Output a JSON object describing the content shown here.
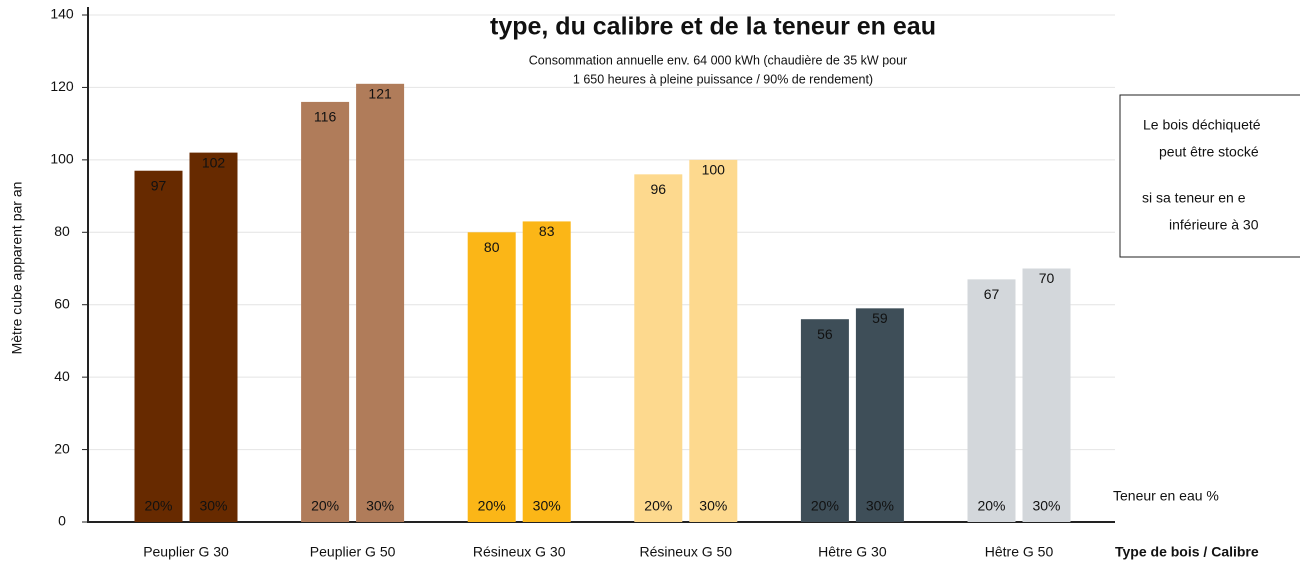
{
  "chart_data": {
    "type": "bar",
    "title": "type, du calibre et de la teneur en eau",
    "subtitle": [
      "Consommation annuelle env. 64 000 kWh (chaudière de 35 kW pour",
      "1 650 heures à pleine puissance / 90% de rendement)"
    ],
    "y_label": "Mètre cube apparent par an",
    "x_label": "Type de bois / Calibre",
    "series_label": "Teneur en eau %",
    "annotation": [
      "Le bois déchiqueté",
      "peut être stocké",
      "si sa teneur en e",
      "inférieure à 30"
    ],
    "categories": [
      "Peuplier G 30",
      "Peuplier G 50",
      "Résineux G 30",
      "Résineux G 50",
      "Hêtre G 30",
      "Hêtre G 50"
    ],
    "colors": [
      "#672a00",
      "#b07c5a",
      "#fbb617",
      "#fdd98e",
      "#3e4e58",
      "#d3d7db"
    ],
    "series": [
      {
        "name": "20%",
        "values": [
          97,
          116,
          80,
          96,
          56,
          67
        ]
      },
      {
        "name": "30%",
        "values": [
          102,
          121,
          83,
          100,
          59,
          70
        ]
      }
    ],
    "ylim": [
      0,
      140
    ],
    "yticks": [
      0,
      20,
      40,
      60,
      80,
      100,
      120,
      140
    ],
    "grid": true
  }
}
